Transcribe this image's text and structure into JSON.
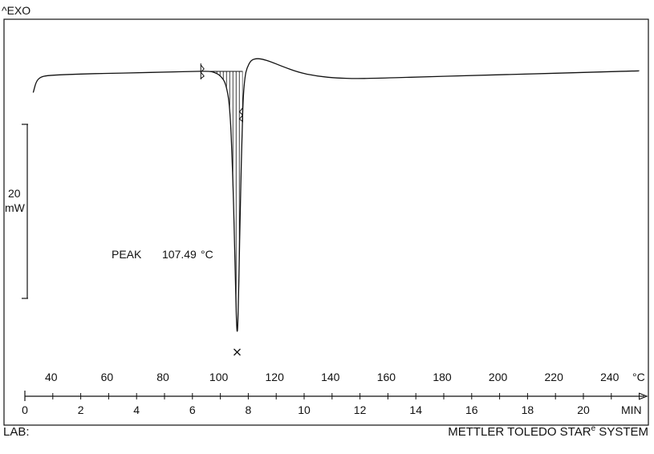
{
  "header": {
    "exo_label": "^EXO"
  },
  "scale_bar": {
    "value": "20",
    "unit": "mW"
  },
  "annotation": {
    "label": "PEAK",
    "value": "107.49",
    "unit": "°C"
  },
  "footer": {
    "lab_label": "LAB:",
    "system_main": "METTLER TOLEDO STAR",
    "system_sup": "e",
    "system_end": " SYSTEM"
  },
  "chart_data": {
    "type": "line",
    "title": "",
    "xlabel": "MIN",
    "x_unit": "MIN",
    "temp_unit": "°C",
    "xlim": [
      0,
      22.2
    ],
    "x_ticks": [
      0,
      2,
      4,
      6,
      8,
      10,
      12,
      14,
      16,
      18,
      20
    ],
    "temp_ticks": [
      40,
      60,
      80,
      100,
      120,
      140,
      160,
      180,
      200,
      220,
      240
    ],
    "temp_tick_times": [
      1.0,
      3.0,
      5.0,
      7.0,
      9.0,
      11.0,
      13.0,
      15.0,
      17.0,
      19.0,
      21.0
    ],
    "ylabel": "mW",
    "ylim": [
      -91,
      12
    ],
    "grid": false,
    "series": [
      {
        "x": [
          0.3,
          0.4,
          0.55,
          0.8,
          1.2,
          2.0,
          3.0,
          4.0,
          5.0,
          6.0,
          6.6,
          6.8,
          7.0,
          7.2,
          7.35,
          7.45,
          7.52,
          7.6,
          7.66,
          7.72,
          7.78,
          7.82,
          7.88,
          7.95,
          8.1,
          8.3,
          8.5,
          8.8,
          9.2,
          9.8,
          10.5,
          11.2,
          11.8,
          12.5,
          14.0,
          16.0,
          18.0,
          20.0,
          22.0
        ],
        "y": [
          -7.0,
          -3.5,
          -2.0,
          -1.5,
          -1.3,
          -1.0,
          -0.8,
          -0.6,
          -0.4,
          -0.2,
          -0.1,
          -0.5,
          -1.5,
          -4.0,
          -12.0,
          -35.0,
          -60.0,
          -90.0,
          -70.0,
          -40.0,
          -20.0,
          -8.0,
          -2.0,
          1.0,
          3.5,
          4.0,
          3.8,
          3.0,
          1.5,
          -0.5,
          -1.8,
          -2.3,
          -2.5,
          -2.4,
          -2.0,
          -1.5,
          -1.0,
          -0.5,
          0.0
        ]
      }
    ],
    "integration_limits_min": [
      6.3,
      7.8
    ],
    "peak": {
      "time_min": 7.6,
      "temperature_c": 107.49
    }
  }
}
